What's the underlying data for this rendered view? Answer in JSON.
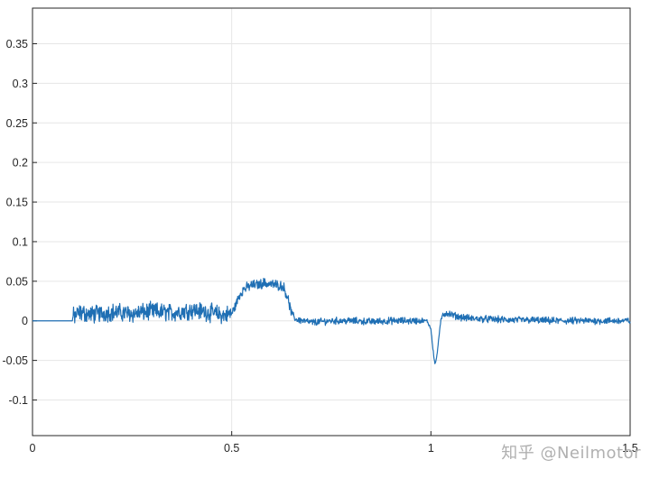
{
  "watermark": "知乎 @Neilmotor",
  "chart_data": {
    "type": "line",
    "title": "",
    "xlabel": "",
    "ylabel": "",
    "xlim": [
      0,
      1.5
    ],
    "ylim": [
      -0.145,
      0.395
    ],
    "grid": true,
    "x_ticks": [
      0,
      0.5,
      1,
      1.5
    ],
    "x_tick_labels": [
      "0",
      "0.5",
      "1",
      "1.5"
    ],
    "y_ticks": [
      -0.1,
      -0.05,
      0,
      0.05,
      0.1,
      0.15,
      0.2,
      0.25,
      0.3,
      0.35
    ],
    "y_tick_labels": [
      "-0.1",
      "-0.05",
      "0",
      "0.05",
      "0.1",
      "0.15",
      "0.2",
      "0.25",
      "0.3",
      "0.35"
    ],
    "line_color": "#1f6fb4",
    "grid_color": "#e6e6e6",
    "series": [
      {
        "x": [
          0,
          0.1,
          0.1,
          0.12,
          0.15,
          0.2,
          0.25,
          0.3,
          0.35,
          0.4,
          0.45,
          0.48,
          0.5,
          0.51,
          0.52,
          0.53,
          0.55,
          0.57,
          0.58,
          0.6,
          0.62,
          0.63,
          0.64,
          0.65,
          0.66,
          0.68,
          0.7,
          0.75,
          0.8,
          0.85,
          0.9,
          0.95,
          0.99,
          1.0,
          1.005,
          1.01,
          1.015,
          1.02,
          1.025,
          1.03,
          1.04,
          1.05,
          1.07,
          1.1,
          1.15,
          1.2,
          1.25,
          1.3,
          1.35,
          1.4,
          1.45,
          1.5
        ],
        "y": [
          0,
          0,
          0.005,
          0.01,
          0.008,
          0.011,
          0.009,
          0.012,
          0.01,
          0.014,
          0.01,
          0.007,
          0.009,
          0.02,
          0.033,
          0.04,
          0.045,
          0.046,
          0.048,
          0.046,
          0.045,
          0.043,
          0.03,
          0.01,
          0.002,
          0.0,
          -0.002,
          0.0,
          0.0,
          -0.001,
          0.0,
          0.0,
          0.0,
          -0.01,
          -0.035,
          -0.055,
          -0.045,
          -0.02,
          0.0,
          0.008,
          0.01,
          0.008,
          0.005,
          0.003,
          0.002,
          0.001,
          0.001,
          0.0,
          0.0,
          0.0,
          0.0,
          0.0
        ]
      }
    ]
  }
}
